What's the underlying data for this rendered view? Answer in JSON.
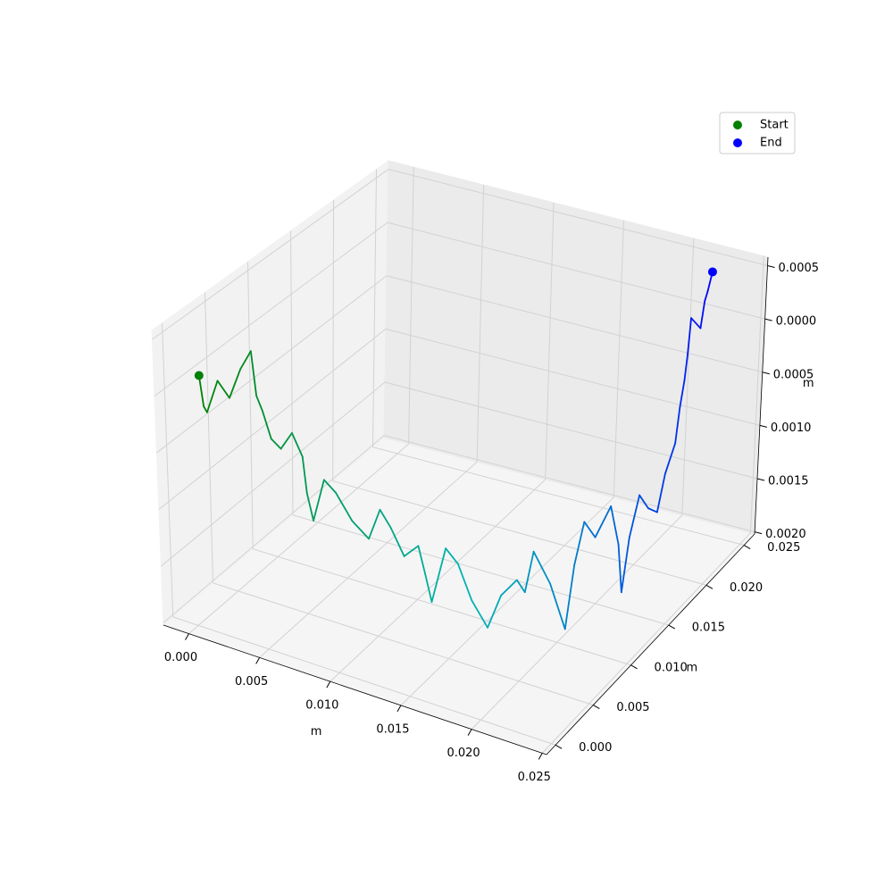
{
  "chart_data": {
    "type": "line3d",
    "xlabel": "m",
    "ylabel": "m",
    "zlabel": "m",
    "xlim": [
      -0.0018,
      0.0253
    ],
    "ylim": [
      -0.0012,
      0.0264
    ],
    "zlim": [
      -0.00202,
      0.00058
    ],
    "xticks": [
      {
        "value": 0,
        "label": "0.000"
      },
      {
        "value": 0.005,
        "label": "0.005"
      },
      {
        "value": 0.01,
        "label": "0.010"
      },
      {
        "value": 0.015,
        "label": "0.015"
      },
      {
        "value": 0.02,
        "label": "0.020"
      },
      {
        "value": 0.025,
        "label": "0.025"
      }
    ],
    "yticks": [
      {
        "value": 0,
        "label": "0.000"
      },
      {
        "value": 0.005,
        "label": "0.005"
      },
      {
        "value": 0.01,
        "label": "0.010"
      },
      {
        "value": 0.015,
        "label": "0.015"
      },
      {
        "value": 0.02,
        "label": "0.020"
      },
      {
        "value": 0.025,
        "label": "0.025"
      }
    ],
    "zticks": [
      {
        "value": 0.0005,
        "label": "0.0005"
      },
      {
        "value": 0,
        "label": "0.0000"
      },
      {
        "value": -0.0005,
        "label": "0.0005"
      },
      {
        "value": -0.001,
        "label": "0.0010"
      },
      {
        "value": -0.0015,
        "label": "0.0015"
      },
      {
        "value": -0.002,
        "label": "0.0020"
      }
    ],
    "grid": true,
    "legend": "upper right",
    "line_colors": [
      "#008000",
      "#00b4b4",
      "#0000ff"
    ],
    "series": [
      {
        "x": [
          0.0007,
          0.0009,
          0.001,
          0.0018,
          0.0026,
          0.0033,
          0.004,
          0.0043,
          0.0047,
          0.0052,
          0.0058,
          0.0066,
          0.0073,
          0.0075,
          0.0078,
          0.0086,
          0.0094,
          0.0104,
          0.0115,
          0.0122,
          0.0129,
          0.0138,
          0.0148,
          0.0152,
          0.0156,
          0.0165,
          0.0173,
          0.0182,
          0.0192,
          0.0201,
          0.0211,
          0.0215,
          0.022,
          0.023,
          0.0239,
          0.0242,
          0.0246,
          0.0244,
          0.0245,
          0.0248,
          0.0249,
          0.0247,
          0.0246,
          0.0247,
          0.0248,
          0.0246,
          0.0245,
          0.024,
          0.0235,
          0.0229,
          0.0223,
          0.0226,
          0.0225,
          0.0223,
          0.0222
        ],
        "y": [
          -0.0001,
          0.0,
          0.0002,
          0.0002,
          0.0002,
          0.0004,
          0.0005,
          0.0005,
          0.0005,
          0.0006,
          0.0007,
          0.0007,
          0.0007,
          0.0008,
          0.001,
          0.001,
          0.001,
          0.0012,
          0.0013,
          0.0015,
          0.0016,
          0.0016,
          0.0016,
          0.0017,
          0.0018,
          0.002,
          0.0021,
          0.0022,
          0.0024,
          0.0025,
          0.0027,
          0.003,
          0.0032,
          0.0035,
          0.0038,
          0.0044,
          0.0049,
          0.0067,
          0.0085,
          0.009,
          0.0093,
          0.0106,
          0.012,
          0.013,
          0.014,
          0.0153,
          0.0167,
          0.0181,
          0.0195,
          0.0209,
          0.0223,
          0.023,
          0.0236,
          0.0243,
          0.025
        ],
        "z": [
          0.00022,
          -5e-05,
          -0.00011,
          0.0002,
          8e-05,
          0.00035,
          0.00053,
          0.00015,
          3e-05,
          -0.0002,
          -0.00027,
          -0.0001,
          -0.00028,
          -0.0006,
          -0.00084,
          -0.00045,
          -0.00053,
          -0.00075,
          -0.00087,
          -0.0006,
          -0.00074,
          -0.00095,
          -0.00082,
          -0.00105,
          -0.00129,
          -0.0008,
          -0.00091,
          -0.0012,
          -0.00141,
          -0.0011,
          -0.00094,
          -0.00105,
          -0.00069,
          -0.00095,
          -0.00133,
          -0.0008,
          -0.00044,
          -0.0007,
          -0.00054,
          -0.0009,
          -0.00134,
          -0.00095,
          -0.00067,
          -0.00085,
          -0.00095,
          -0.0007,
          -0.00052,
          -0.0003,
          -0.00017,
          -5e-05,
          0.00018,
          5e-05,
          0.00026,
          0.0003,
          0.00043
        ]
      }
    ],
    "markers": [
      {
        "name": "Start",
        "color": "#008000",
        "x": 0.0007,
        "y": -0.0001,
        "z": 0.00022
      },
      {
        "name": "End",
        "color": "#0000ff",
        "x": 0.0222,
        "y": 0.025,
        "z": 0.00043
      }
    ]
  }
}
